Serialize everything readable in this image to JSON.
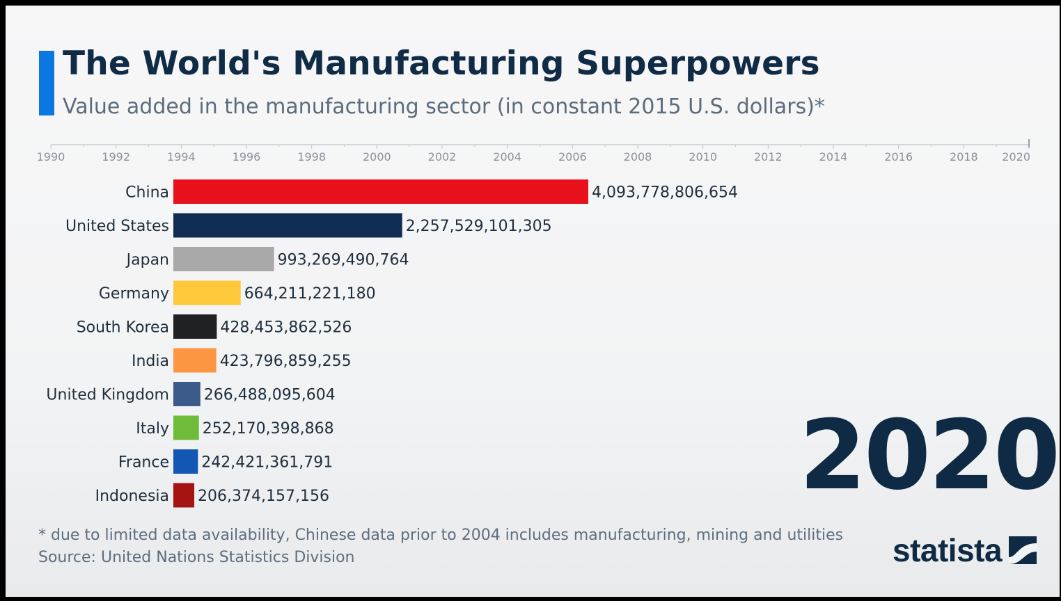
{
  "header": {
    "title": "The World's Manufacturing Superpowers",
    "subtitle": "Value added in the manufacturing sector (in constant 2015 U.S. dollars)*"
  },
  "current_year": "2020",
  "footnote": "* due to limited data availability, Chinese data prior to 2004 includes manufacturing, mining and utilities",
  "source": "Source: United Nations Statistics Division",
  "brand": "statista",
  "colors": {
    "title": "#102b45",
    "accent": "#0b77e3"
  },
  "chart_data": {
    "type": "bar",
    "orientation": "horizontal",
    "title": "The World's Manufacturing Superpowers",
    "timeline": {
      "ticks": [
        "1990",
        "1992",
        "1994",
        "1996",
        "1998",
        "2000",
        "2002",
        "2004",
        "2006",
        "2008",
        "2010",
        "2012",
        "2014",
        "2016",
        "2018",
        "2020"
      ],
      "range": [
        1990,
        2020
      ],
      "current": 2020
    },
    "xlim": [
      0,
      4093778806654
    ],
    "categories": [
      "China",
      "United States",
      "Japan",
      "Germany",
      "South Korea",
      "India",
      "United Kingdom",
      "Italy",
      "France",
      "Indonesia"
    ],
    "values": [
      4093778806654,
      2257529101305,
      993269490764,
      664211221180,
      428453862526,
      423796859255,
      266488095604,
      252170398868,
      242421361791,
      206374157156
    ],
    "value_labels": [
      "4,093,778,806,654",
      "2,257,529,101,305",
      "993,269,490,764",
      "664,211,221,180",
      "428,453,862,526",
      "423,796,859,255",
      "266,488,095,604",
      "252,170,398,868",
      "242,421,361,791",
      "206,374,157,156"
    ],
    "colors": [
      "#e8101b",
      "#0f2c52",
      "#a9a9a9",
      "#fdc93a",
      "#1f2124",
      "#fd9643",
      "#3c5a8a",
      "#6fbb3a",
      "#1257b4",
      "#a51313"
    ]
  }
}
